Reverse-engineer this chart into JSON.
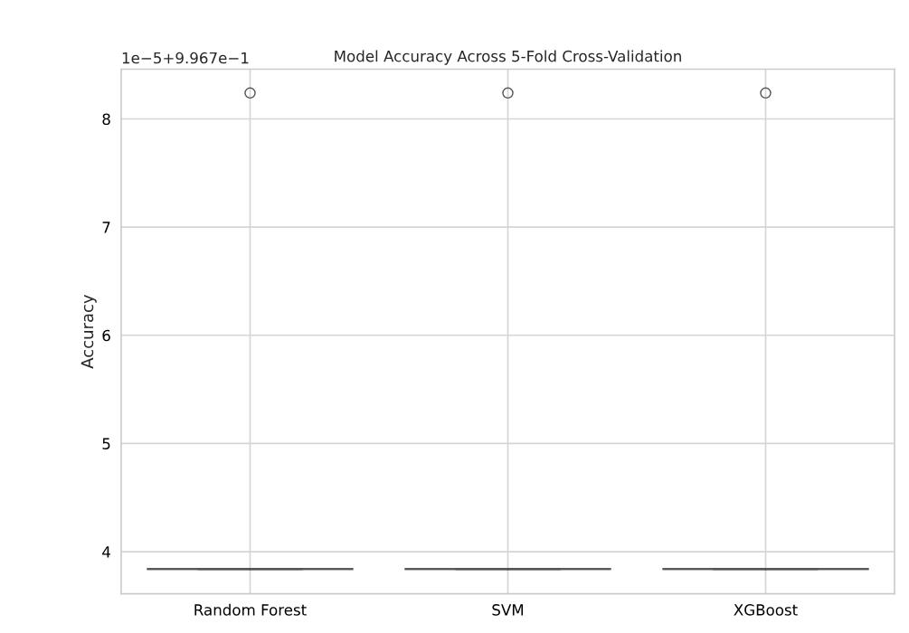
{
  "chart_data": {
    "type": "box",
    "title": "Model Accuracy Across 5-Fold Cross-Validation",
    "ylabel": "Accuracy",
    "categories": [
      "Random Forest",
      "SVM",
      "XGBoost"
    ],
    "boxes": [
      {
        "low": 3.84,
        "q1": 3.84,
        "median": 3.84,
        "q3": 3.84,
        "high": 3.84,
        "outliers": [
          8.24
        ]
      },
      {
        "low": 3.84,
        "q1": 3.84,
        "median": 3.84,
        "q3": 3.84,
        "high": 3.84,
        "outliers": [
          8.24
        ]
      },
      {
        "low": 3.84,
        "q1": 3.84,
        "median": 3.84,
        "q3": 3.84,
        "high": 3.84,
        "outliers": [
          8.24
        ]
      }
    ],
    "color": "#555555",
    "ylim": [
      3.61,
      8.46
    ],
    "yticks": [
      4,
      5,
      6,
      7,
      8
    ],
    "annotations": [
      "1e−5+9.967e−1"
    ],
    "grid": true
  }
}
